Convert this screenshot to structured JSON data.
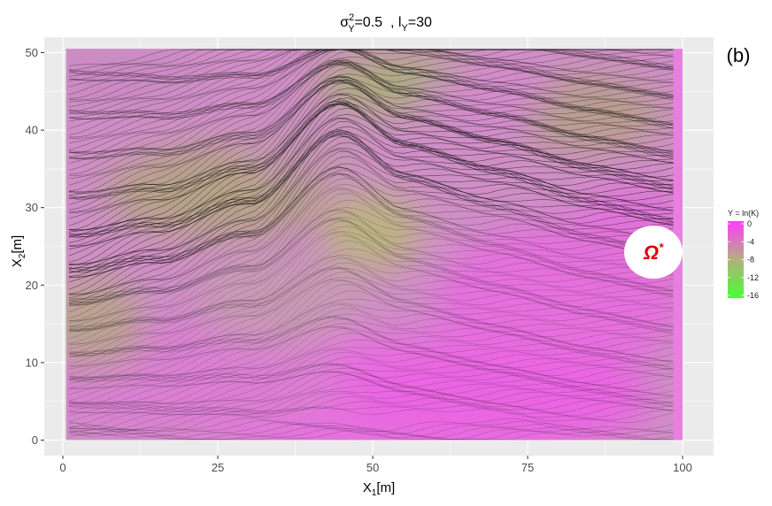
{
  "panel_label": "(b)",
  "title": {
    "sigma": "σ",
    "sigma_sup": "2",
    "sigma_sub": "Y",
    "sigma_val": "=0.5",
    "sep": "  , ",
    "l": "l",
    "l_sub": "Y",
    "l_val": "=30"
  },
  "xlabel": {
    "base": "X",
    "sub": "1",
    "unit": "[m]"
  },
  "ylabel": {
    "base": "X",
    "sub": "2",
    "unit": "[m]"
  },
  "annotation": {
    "symbol": "Ω",
    "sup": "*"
  },
  "colors": {
    "panel_bg": "#ebebeb",
    "grid": "#ffffff",
    "high": "#ff3cff",
    "mid": "#b4b07e",
    "low": "#46ff32",
    "streamline": "#000000",
    "annotation_text": "#e00000"
  },
  "chart_data": {
    "type": "heatmap",
    "description_of_marks": "log-conductivity field Y = ln(K) with overlaid streamlines",
    "xlim": [
      -3,
      105
    ],
    "ylim": [
      -2,
      52
    ],
    "xticks": [
      0,
      25,
      50,
      75,
      100
    ],
    "xtick_labels": [
      "0",
      "25",
      "50",
      "75",
      "100"
    ],
    "yticks": [
      0,
      10,
      20,
      30,
      40,
      50
    ],
    "ytick_labels": [
      "0",
      "10",
      "20",
      "30",
      "40",
      "50"
    ],
    "grid": true,
    "domain": {
      "x": [
        0.5,
        100
      ],
      "y": [
        0,
        50.5
      ]
    },
    "legend": {
      "title": "Y = ln(K)",
      "placement": "right",
      "scale": [
        0,
        -16
      ],
      "breaks": [
        0,
        -4,
        -8,
        -12,
        -16
      ],
      "labels": [
        "0",
        "-4",
        "-8",
        "-12",
        "-16"
      ]
    },
    "streamlines": {
      "count": 180,
      "x_start": 1,
      "x_end": 99,
      "dense_band_path": [
        [
          1,
          22
        ],
        [
          15,
          25
        ],
        [
          30,
          30
        ],
        [
          45,
          40.5
        ],
        [
          55,
          36
        ],
        [
          70,
          34
        ],
        [
          85,
          32
        ],
        [
          99,
          31
        ]
      ]
    }
  }
}
